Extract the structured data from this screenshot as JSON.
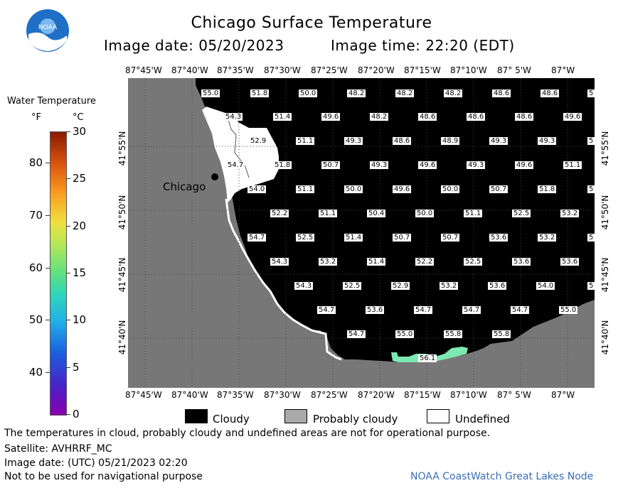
{
  "header": {
    "title": "Chicago Surface Temperature",
    "image_date": "Image date: 05/20/2023",
    "image_time": "Image time: 22:20 (EDT)"
  },
  "logo": {
    "text": "NOAA",
    "icon": "noaa-logo"
  },
  "legend": {
    "title": "Water Temperature",
    "unit_f": "°F",
    "unit_c": "°C",
    "f_ticks": [
      "80",
      "70",
      "60",
      "50",
      "40"
    ],
    "c_ticks": [
      "30",
      "25",
      "20",
      "15",
      "10",
      "5",
      "0"
    ],
    "scale": {
      "f_min": 32,
      "f_max": 86,
      "c_min": 0,
      "c_max": 30
    }
  },
  "map": {
    "lon_labels": [
      "87°45'W",
      "87°40'W",
      "87°35'W",
      "87°30'W",
      "87°25'W",
      "87°20'W",
      "87°15'W",
      "87°10'W",
      "87° 5'W",
      "87°W"
    ],
    "lat_labels": [
      "41°55'N",
      "41°50'N",
      "41°45'N",
      "41°40'N"
    ],
    "city_label": "Chicago",
    "temperatures": [
      [
        "55.0",
        "51.8",
        "50.0",
        "48.2",
        "48.2",
        "48.2",
        "48.6",
        "48.6",
        "5"
      ],
      [
        "54.3",
        "51.4",
        "49.6",
        "48.2",
        "48.6",
        "48.6",
        "48.6",
        "49.6"
      ],
      [
        "52.9",
        "51.1",
        "49.3",
        "48.6",
        "48.9",
        "49.3",
        "49.3",
        "5"
      ],
      [
        "54.7",
        "51.8",
        "50.7",
        "49.3",
        "49.6",
        "49.3",
        "49.6",
        "51.1"
      ],
      [
        "54.0",
        "51.1",
        "50.0",
        "49.6",
        "50.0",
        "50.7",
        "51.8",
        "5"
      ],
      [
        "52.2",
        "51.1",
        "50.4",
        "50.0",
        "51.1",
        "52.5",
        "53.2"
      ],
      [
        "54.7",
        "52.5",
        "51.4",
        "50.7",
        "50.7",
        "53.6",
        "53.2",
        "5"
      ],
      [
        "54.3",
        "53.2",
        "51.4",
        "52.2",
        "52.5",
        "53.6",
        "53.6"
      ],
      [
        "54.3",
        "52.5",
        "52.9",
        "53.2",
        "53.6",
        "54.0",
        "5"
      ],
      [
        "54.7",
        "53.6",
        "54.7",
        "54.7",
        "54.7",
        "55.0"
      ],
      [
        "54.7",
        "55.0",
        "55.8",
        "55.8"
      ],
      [
        "56.1"
      ]
    ]
  },
  "key": {
    "cloudy": "Cloudy",
    "probably_cloudy": "Probably cloudy",
    "undefined": "Undefined"
  },
  "footer": {
    "note": "The temperatures in cloud, probably cloudy and undefined areas are not for operational purpose.",
    "satellite": "Satellite: AVHRRF_MC",
    "utc_date": "Image date: (UTC) 05/21/2023  02:20",
    "nav_warning": "Not to be used for navigational purpose",
    "credit": "NOAA CoastWatch Great Lakes Node"
  },
  "colors": {
    "land": "#777777",
    "cloudy": "#000000",
    "undefined": "#ffffff",
    "warm_water": "#7de8b0",
    "credit": "#3a6fb5"
  }
}
